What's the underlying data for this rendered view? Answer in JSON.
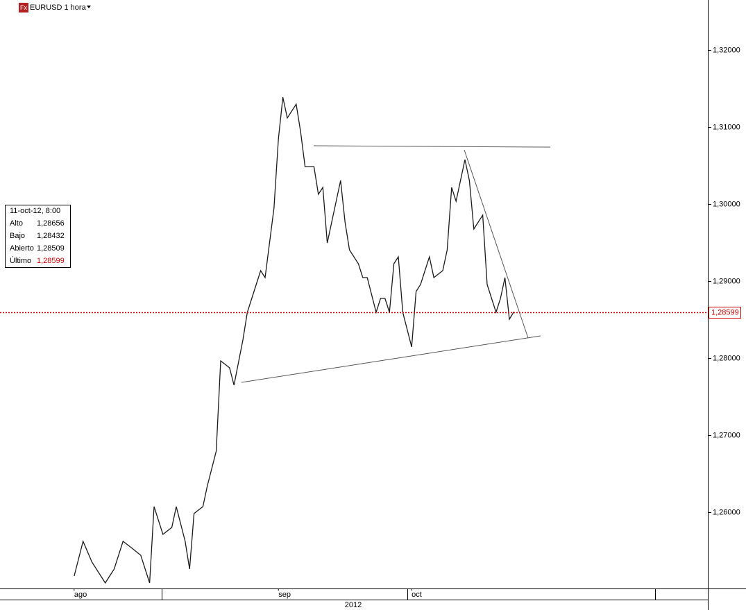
{
  "chart_data": {
    "type": "line",
    "title": "EURUSD 1 hora",
    "icon_text": "Fx",
    "x": [
      0,
      2,
      4,
      7,
      9,
      11,
      13,
      15,
      17,
      18,
      20,
      22,
      23,
      25,
      26,
      27,
      29,
      30,
      32,
      33,
      35,
      36,
      38,
      39,
      40,
      42,
      43,
      45,
      46,
      47,
      48,
      50,
      51,
      52,
      54,
      55,
      56,
      57,
      58,
      60,
      61,
      62,
      64,
      65,
      66,
      68,
      69,
      70,
      71,
      72,
      73,
      74,
      76,
      77,
      78,
      79,
      80,
      81,
      83,
      84,
      85,
      86,
      88,
      89,
      90,
      91,
      92,
      93,
      95,
      96,
      97,
      98,
      99
    ],
    "values": [
      1.25171,
      1.25622,
      1.25351,
      1.25081,
      1.25261,
      1.25622,
      1.25532,
      1.25441,
      1.25081,
      1.26072,
      1.25712,
      1.25802,
      1.26072,
      1.25622,
      1.25261,
      1.25982,
      1.26072,
      1.26342,
      1.26793,
      1.27964,
      1.27874,
      1.27649,
      1.28234,
      1.28595,
      1.28775,
      1.29135,
      1.29045,
      1.29946,
      1.30847,
      1.31387,
      1.31117,
      1.31297,
      1.30937,
      1.30486,
      1.30486,
      1.30126,
      1.30216,
      1.29495,
      1.29766,
      1.30306,
      1.29766,
      1.29405,
      1.29225,
      1.29045,
      1.29045,
      1.28595,
      1.28775,
      1.28775,
      1.28595,
      1.29225,
      1.29315,
      1.28595,
      1.28144,
      1.28865,
      1.28955,
      1.29135,
      1.29315,
      1.29045,
      1.29135,
      1.29405,
      1.30216,
      1.30036,
      1.30577,
      1.30306,
      1.29676,
      1.29766,
      1.29856,
      1.28955,
      1.28595,
      1.28775,
      1.29045,
      1.28505,
      1.28599
    ],
    "color": "#1a1a1a",
    "xlim": [
      -16.7,
      142.7
    ],
    "ylim": [
      1.25009,
      1.32649
    ],
    "yticks": [
      {
        "value": 1.26,
        "label": "1,26000"
      },
      {
        "value": 1.27,
        "label": "1,27000"
      },
      {
        "value": 1.28,
        "label": "1,28000"
      },
      {
        "value": 1.29,
        "label": "1,29000"
      },
      {
        "value": 1.3,
        "label": "1,30000"
      },
      {
        "value": 1.31,
        "label": "1,31000"
      },
      {
        "value": 1.32,
        "label": "1,32000"
      }
    ],
    "xticks": [
      {
        "value": 0,
        "label": "ago"
      },
      {
        "value": 46,
        "label": "sep"
      },
      {
        "value": 76,
        "label": "oct"
      }
    ],
    "year": "2012",
    "last_price": {
      "value": 1.28599,
      "label": "1,28599"
    },
    "info_panel": {
      "date": "11-oct-12, 8:00",
      "rows": [
        [
          "Alto",
          "1,28656"
        ],
        [
          "Bajo",
          "1,28432"
        ],
        [
          "Abierto",
          "1,28509"
        ],
        [
          "Último",
          "1,28599"
        ]
      ]
    }
  }
}
